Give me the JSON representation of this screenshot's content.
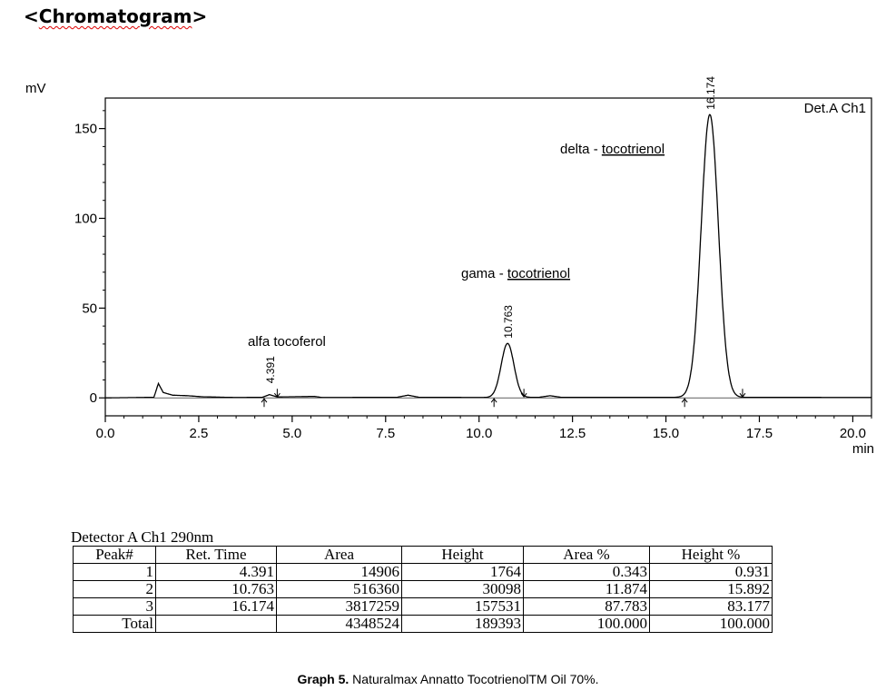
{
  "page": {
    "heading_prefix": "<",
    "heading_word": "Chromatogram",
    "heading_suffix": ">"
  },
  "chart_data": {
    "type": "line",
    "xlabel": "min",
    "ylabel": "mV",
    "detector_label": "Det.A Ch1",
    "xlim": [
      0,
      20.5
    ],
    "ylim": [
      -10,
      167
    ],
    "xticks": [
      0.0,
      2.5,
      5.0,
      7.5,
      10.0,
      12.5,
      15.0,
      17.5,
      20.0
    ],
    "xtick_labels": [
      "0.0",
      "2.5",
      "5.0",
      "7.5",
      "10.0",
      "12.5",
      "15.0",
      "17.5",
      "20.0"
    ],
    "yticks": [
      0,
      50,
      100,
      150
    ],
    "ytick_labels": [
      "0",
      "50",
      "100",
      "150"
    ],
    "baseline": [
      {
        "t": 0.0,
        "y": 0
      },
      {
        "t": 1.3,
        "y": 0.3
      },
      {
        "t": 1.42,
        "y": 8
      },
      {
        "t": 1.55,
        "y": 3
      },
      {
        "t": 1.8,
        "y": 1.5
      },
      {
        "t": 2.2,
        "y": 1.2
      },
      {
        "t": 2.6,
        "y": 0.6
      },
      {
        "t": 3.5,
        "y": 0.2
      },
      {
        "t": 4.2,
        "y": 0.3
      },
      {
        "t": 4.391,
        "y": 1.8
      },
      {
        "t": 4.6,
        "y": 0.5
      },
      {
        "t": 5.6,
        "y": 0.8
      },
      {
        "t": 5.8,
        "y": 0.2
      },
      {
        "t": 7.8,
        "y": 0.3
      },
      {
        "t": 8.1,
        "y": 1.5
      },
      {
        "t": 8.4,
        "y": 0.3
      },
      {
        "t": 10.3,
        "y": 0.2
      },
      {
        "t": 11.6,
        "y": 0.3
      },
      {
        "t": 11.9,
        "y": 1.2
      },
      {
        "t": 12.2,
        "y": 0.3
      },
      {
        "t": 15.4,
        "y": 0.3
      },
      {
        "t": 17.2,
        "y": 0.3
      },
      {
        "t": 20.5,
        "y": 0.2
      }
    ],
    "peaks": [
      {
        "ret_time": 4.391,
        "height_mv": 1.8,
        "sigma": 0.12,
        "rt_label": "4.391",
        "name": "alfa tocoferol"
      },
      {
        "ret_time": 10.763,
        "height_mv": 30.1,
        "sigma": 0.17,
        "rt_label": "10.763",
        "name": "gama - tocotrienol"
      },
      {
        "ret_time": 16.174,
        "height_mv": 157.5,
        "sigma": 0.23,
        "rt_label": "16.174",
        "name": "delta - tocotrienol"
      }
    ],
    "integration_marks": [
      {
        "t": 4.25,
        "kind": "start"
      },
      {
        "t": 4.6,
        "kind": "end"
      },
      {
        "t": 10.4,
        "kind": "start"
      },
      {
        "t": 11.2,
        "kind": "end"
      },
      {
        "t": 15.5,
        "kind": "start"
      },
      {
        "t": 17.05,
        "kind": "end"
      }
    ]
  },
  "table": {
    "title": "Detector A Ch1 290nm",
    "columns": [
      "Peak#",
      "Ret. Time",
      "Area",
      "Height",
      "Area %",
      "Height %"
    ],
    "rows": [
      [
        "1",
        "4.391",
        "14906",
        "1764",
        "0.343",
        "0.931"
      ],
      [
        "2",
        "10.763",
        "516360",
        "30098",
        "11.874",
        "15.892"
      ],
      [
        "3",
        "16.174",
        "3817259",
        "157531",
        "87.783",
        "83.177"
      ]
    ],
    "total": [
      "Total",
      "",
      "4348524",
      "189393",
      "100.000",
      "100.000"
    ]
  },
  "caption": {
    "bold": "Graph 5.",
    "text": " Naturalmax Annatto TocotrienolTM Oil 70%."
  }
}
